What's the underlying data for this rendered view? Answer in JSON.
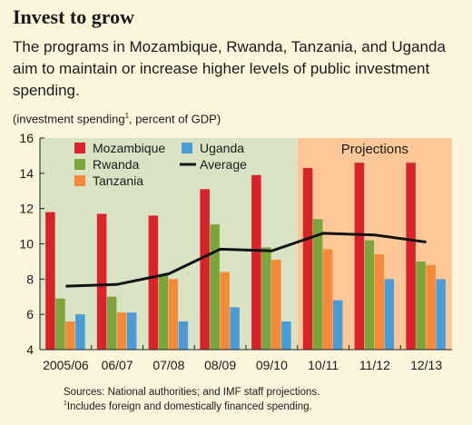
{
  "title": "Invest to grow",
  "subtitle": "The programs in Mozambique, Rwanda, Tanzania, and Uganda aim to maintain or increase higher levels of public investment spending.",
  "unit_label": "(investment spending",
  "unit_sup": "1",
  "unit_suffix": ", percent of GDP)",
  "footnotes": {
    "sources": "Sources: National authorities; and IMF staff projections.",
    "note_marker": "1",
    "note_text": "Includes foreign and domestically financed spending."
  },
  "colors": {
    "historical_bg": "#d9e3c3",
    "projection_bg": "#fdc797",
    "page_bg": "#fdf5dc",
    "average_line": "#111111"
  },
  "chart_data": {
    "type": "bar",
    "categories": [
      "2005/06",
      "06/07",
      "07/08",
      "08/09",
      "09/10",
      "10/11",
      "11/12",
      "12/13"
    ],
    "ylim": [
      4,
      16
    ],
    "yticks": [
      4,
      6,
      8,
      10,
      12,
      14,
      16
    ],
    "projection_label": "Projections",
    "projection_start_index": 5,
    "series": [
      {
        "name": "Mozambique",
        "color": "#d8232a",
        "values": [
          11.8,
          11.7,
          11.6,
          13.1,
          13.9,
          14.3,
          14.6,
          14.6
        ]
      },
      {
        "name": "Rwanda",
        "color": "#7ca53c",
        "values": [
          6.9,
          7.0,
          8.2,
          11.1,
          9.8,
          11.4,
          10.2,
          9.0
        ]
      },
      {
        "name": "Tanzania",
        "color": "#f48a3a",
        "values": [
          5.6,
          6.1,
          8.0,
          8.4,
          9.1,
          9.7,
          9.4,
          8.8
        ]
      },
      {
        "name": "Uganda",
        "color": "#4a9bd6",
        "values": [
          6.0,
          6.1,
          5.6,
          6.4,
          5.6,
          6.8,
          8.0,
          8.0
        ]
      }
    ],
    "line": {
      "name": "Average",
      "color": "#111111",
      "values": [
        7.6,
        7.7,
        8.3,
        9.7,
        9.6,
        10.6,
        10.5,
        10.1
      ]
    },
    "legend": {
      "placement": "top-left"
    },
    "grid": false
  }
}
